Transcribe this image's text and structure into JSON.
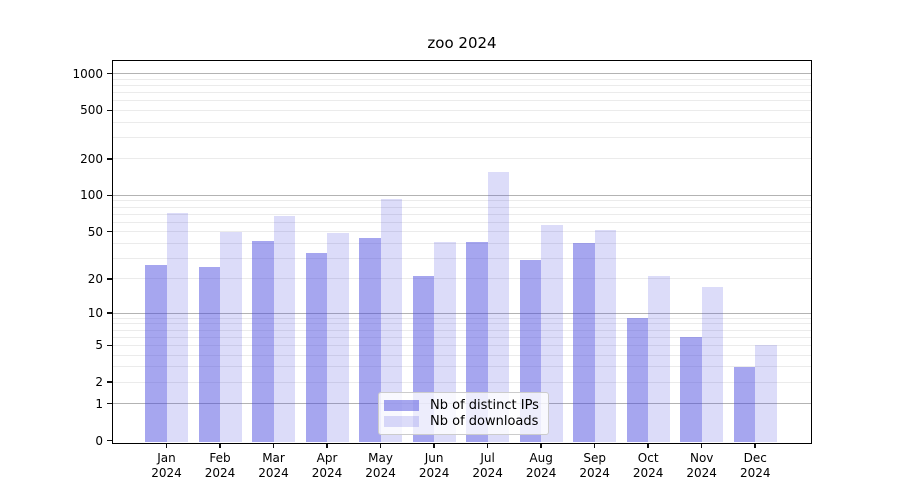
{
  "chart_data": {
    "type": "bar",
    "title": "zoo 2024",
    "scale": "log1p",
    "categories": [
      "Jan",
      "Feb",
      "Mar",
      "Apr",
      "May",
      "Jun",
      "Jul",
      "Aug",
      "Sep",
      "Oct",
      "Nov",
      "Dec"
    ],
    "category_year": "2024",
    "series": [
      {
        "name": "Nb of distinct IPs",
        "color": "#4444dd",
        "alpha": 0.48,
        "values": [
          26,
          25,
          42,
          33,
          44,
          21,
          41,
          29,
          40,
          9,
          6,
          3
        ]
      },
      {
        "name": "Nb of downloads",
        "color": "#4444dd",
        "alpha": 0.19,
        "values": [
          72,
          50,
          67,
          49,
          93,
          41,
          155,
          57,
          52,
          21,
          17,
          5
        ]
      }
    ],
    "yticks": [
      0,
      1,
      2,
      5,
      10,
      20,
      50,
      100,
      200,
      500,
      1000
    ],
    "ylim": [
      0,
      1280
    ],
    "xlabel": "",
    "ylabel": "",
    "grid": true,
    "legend_position": "lower center",
    "colors": {
      "bar_base": "#4444dd",
      "major_grid": "#b3b3b3",
      "minor_grid": "#ebebeb",
      "spine": "#000000",
      "legend_border": "#cccccc",
      "background": "#ffffff"
    }
  }
}
